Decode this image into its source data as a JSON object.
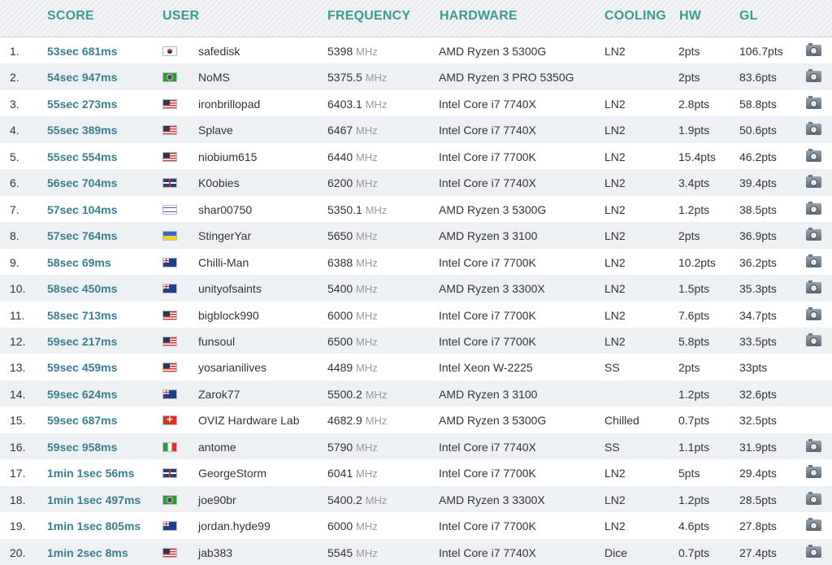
{
  "table": {
    "header": [
      "SCORE",
      "USER",
      "FREQUENCY",
      "HARDWARE",
      "COOLING",
      "HW",
      "GL"
    ],
    "rows": [
      {
        "rank": "1.",
        "score": "53sec 681ms",
        "user": "safedisk",
        "freq": "5398",
        "unit": "MHz",
        "hardware": "AMD Ryzen 3 5300G",
        "cooling": "LN2",
        "hw": "2pts",
        "gl": "106.7pts"
      },
      {
        "rank": "2.",
        "score": "54sec 947ms",
        "user": "NoMS",
        "freq": "5375.5",
        "unit": "MHz",
        "hardware": "AMD Ryzen 3 PRO 5350G",
        "cooling": null,
        "hw": "2pts",
        "gl": "83.6pts"
      },
      {
        "rank": "3.",
        "score": "55sec 273ms",
        "user": "ironbrillopad",
        "freq": "6403.1",
        "unit": "MHz",
        "hardware": "Intel Core i7 7740X",
        "cooling": "LN2",
        "hw": "2.8pts",
        "gl": "58.8pts"
      },
      {
        "rank": "4.",
        "score": "55sec 389ms",
        "user": "Splave",
        "freq": "6467",
        "unit": "MHz",
        "hardware": "Intel Core i7 7740X",
        "cooling": "LN2",
        "hw": "1.9pts",
        "gl": "50.6pts"
      },
      {
        "rank": "5.",
        "score": "55sec 554ms",
        "user": "niobium615",
        "freq": "6440",
        "unit": "MHz",
        "hardware": "Intel Core i7 7700K",
        "cooling": "LN2",
        "hw": "15.4pts",
        "gl": "46.2pts"
      },
      {
        "rank": "6.",
        "score": "56sec 704ms",
        "user": "K0obies",
        "freq": "6200",
        "unit": "MHz",
        "hardware": "Intel Core i7 7740X",
        "cooling": "LN2",
        "hw": "3.4pts",
        "gl": "39.4pts"
      },
      {
        "rank": "7.",
        "score": "57sec 104ms",
        "user": "shar00750",
        "freq": "5350.1",
        "unit": "MHz",
        "hardware": "AMD Ryzen 3 5300G",
        "cooling": "LN2",
        "hw": "1.2pts",
        "gl": "38.5pts"
      },
      {
        "rank": "8.",
        "score": "57sec 764ms",
        "user": "StingerYar",
        "freq": "5650",
        "unit": "MHz",
        "hardware": "AMD Ryzen 3 3100",
        "cooling": "LN2",
        "hw": "2pts",
        "gl": "36.9pts"
      },
      {
        "rank": "9.",
        "score": "58sec 69ms",
        "user": "Chilli-Man",
        "freq": "6388",
        "unit": "MHz",
        "hardware": "Intel Core i7 7700K",
        "cooling": "LN2",
        "hw": "10.2pts",
        "gl": "36.2pts"
      },
      {
        "rank": "10.",
        "score": "58sec 450ms",
        "user": "unityofsaints",
        "freq": "5400",
        "unit": "MHz",
        "hardware": "AMD Ryzen 3 3300X",
        "cooling": "LN2",
        "hw": "1.5pts",
        "gl": "35.3pts"
      },
      {
        "rank": "11.",
        "score": "58sec 713ms",
        "user": "bigblock990",
        "freq": "6000",
        "unit": "MHz",
        "hardware": "Intel Core i7 7700K",
        "cooling": "LN2",
        "hw": "7.6pts",
        "gl": "34.7pts"
      },
      {
        "rank": "12.",
        "score": "59sec 217ms",
        "user": "funsoul",
        "freq": "6500",
        "unit": "MHz",
        "hardware": "Intel Core i7 7700K",
        "cooling": "LN2",
        "hw": "5.8pts",
        "gl": "33.5pts"
      },
      {
        "rank": "13.",
        "score": "59sec 459ms",
        "user": "yosarianilives",
        "freq": "4489",
        "unit": "MHz",
        "hardware": "Intel Xeon W-2225",
        "cooling": "SS",
        "hw": "2pts",
        "gl": "33pts"
      },
      {
        "rank": "14.",
        "score": "59sec 624ms",
        "user": "Zarok77",
        "freq": "5500.2",
        "unit": "MHz",
        "hardware": "AMD Ryzen 3 3100",
        "cooling": null,
        "hw": "1.2pts",
        "gl": "32.6pts"
      },
      {
        "rank": "15.",
        "score": "59sec 687ms",
        "user": "OVIZ Hardware Lab",
        "freq": "4682.9",
        "unit": "MHz",
        "hardware": "AMD Ryzen 3 5300G",
        "cooling": "Chilled",
        "hw": "0.7pts",
        "gl": "32.5pts"
      },
      {
        "rank": "16.",
        "score": "59sec 958ms",
        "user": "antome",
        "freq": "5790",
        "unit": "MHz",
        "hardware": "Intel Core i7 7740X",
        "cooling": "SS",
        "hw": "1.1pts",
        "gl": "31.9pts"
      },
      {
        "rank": "17.",
        "score": "1min 1sec 56ms",
        "user": "GeorgeStorm",
        "freq": "6041",
        "unit": "MHz",
        "hardware": "Intel Core i7 7700K",
        "cooling": "LN2",
        "hw": "5pts",
        "gl": "29.4pts"
      },
      {
        "rank": "18.",
        "score": "1min 1sec 497ms",
        "user": "joe90br",
        "freq": "5400.2",
        "unit": "MHz",
        "hardware": "AMD Ryzen 3 3300X",
        "cooling": "LN2",
        "hw": "1.2pts",
        "gl": "28.5pts"
      },
      {
        "rank": "19.",
        "score": "1min 1sec 805ms",
        "user": "jordan.hyde99",
        "freq": "6000",
        "unit": "MHz",
        "hardware": "Intel Core i7 7700K",
        "cooling": "LN2",
        "hw": "4.6pts",
        "gl": "27.8pts"
      },
      {
        "rank": "20.",
        "score": "1min 2sec 8ms",
        "user": "jab383",
        "freq": "5545",
        "unit": "MHz",
        "hardware": "Intel Core i7 7740X",
        "cooling": "Dice",
        "hw": "0.7pts",
        "gl": "27.4pts"
      }
    ]
  }
}
